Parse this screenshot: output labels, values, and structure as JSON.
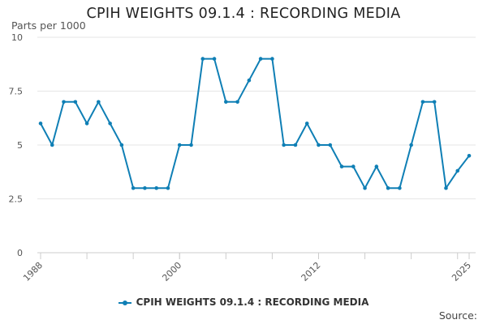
{
  "page": {
    "title": "CPIH WEIGHTS 09.1.4 : RECORDING MEDIA",
    "y_unit": "Parts per 1000",
    "source_label": "Source:"
  },
  "colors": {
    "series": "#0f7fb5",
    "grid": "#e6e6e6",
    "axis": "#cccccc"
  },
  "chart_data": {
    "type": "line",
    "title": "CPIH WEIGHTS 09.1.4 : RECORDING MEDIA",
    "ylabel": "Parts per 1000",
    "xlabel": "",
    "ylim": [
      0,
      10
    ],
    "xlim": [
      1988,
      2025
    ],
    "y_ticks": [
      "0",
      "2.5",
      "5",
      "7.5",
      "10"
    ],
    "x_tick_labels": [
      "1988",
      "2000",
      "2012",
      "2025"
    ],
    "grid": "horizontal",
    "legend": "bottom",
    "x": [
      1988,
      1989,
      1990,
      1991,
      1992,
      1993,
      1994,
      1995,
      1996,
      1997,
      1998,
      1999,
      2000,
      2001,
      2002,
      2003,
      2004,
      2005,
      2006,
      2007,
      2008,
      2009,
      2010,
      2011,
      2012,
      2013,
      2014,
      2015,
      2016,
      2017,
      2018,
      2019,
      2020,
      2021,
      2022,
      2023,
      2024,
      2025
    ],
    "series": [
      {
        "name": "CPIH WEIGHTS 09.1.4 : RECORDING MEDIA",
        "values": [
          6,
          5,
          7,
          7,
          6,
          7,
          6,
          5,
          3,
          3,
          3,
          3,
          5,
          5,
          9,
          9,
          7,
          7,
          8,
          9,
          9,
          5,
          5,
          6,
          5,
          5,
          4,
          4,
          3,
          4,
          3,
          3,
          5,
          7,
          7,
          3,
          3.8,
          4.5
        ]
      }
    ]
  }
}
